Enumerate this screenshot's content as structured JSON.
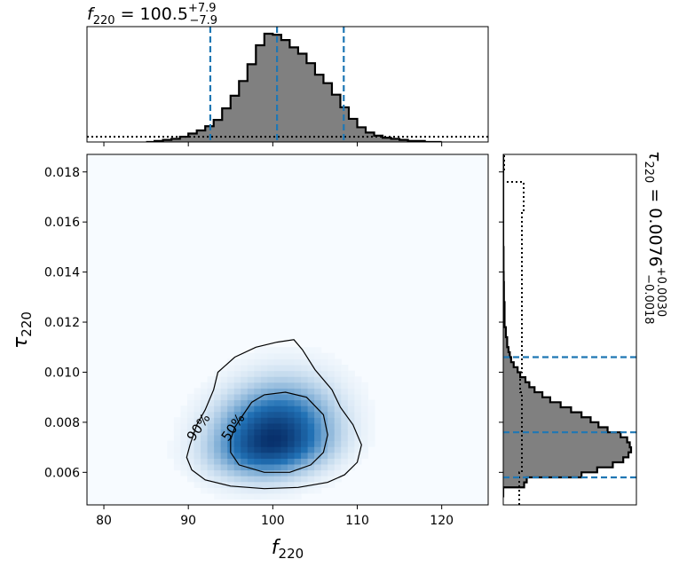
{
  "colors": {
    "hist_fill": "#808080",
    "hist_edge": "#000000",
    "quantile_line": "#1f77b4",
    "density_low": "#f7fbff",
    "density_high": "#08306b"
  },
  "chart_data": [
    {
      "type": "heatmap",
      "xlabel_base": "f",
      "xlabel_sub": "220",
      "ylabel_base": "τ",
      "ylabel_sub": "220",
      "xlim": [
        78,
        125.5
      ],
      "ylim": [
        0.0047,
        0.0187
      ],
      "xticks": [
        80,
        90,
        100,
        110,
        120
      ],
      "xtick_labels": [
        "80",
        "90",
        "100",
        "110",
        "120"
      ],
      "yticks": [
        0.006,
        0.008,
        0.01,
        0.012,
        0.014,
        0.016,
        0.018
      ],
      "ytick_labels": [
        "0.006",
        "0.008",
        "0.010",
        "0.012",
        "0.014",
        "0.016",
        "0.018"
      ],
      "density_peak": {
        "x": 100.0,
        "y": 0.0073
      },
      "contours": [
        {
          "label": "90%",
          "points": [
            [
              90.4,
              0.0061
            ],
            [
              92,
              0.0057
            ],
            [
              95,
              0.00545
            ],
            [
              99,
              0.00535
            ],
            [
              103,
              0.0054
            ],
            [
              106.5,
              0.0056
            ],
            [
              108.5,
              0.0059
            ],
            [
              110,
              0.0064
            ],
            [
              110.5,
              0.0071
            ],
            [
              109.5,
              0.0079
            ],
            [
              108,
              0.0086
            ],
            [
              107,
              0.0093
            ],
            [
              105,
              0.0101
            ],
            [
              103.5,
              0.0109
            ],
            [
              102.5,
              0.0113
            ],
            [
              100.5,
              0.0112
            ],
            [
              98,
              0.011
            ],
            [
              95.5,
              0.0106
            ],
            [
              93.5,
              0.01
            ],
            [
              93,
              0.0093
            ],
            [
              92,
              0.0085
            ],
            [
              91,
              0.0079
            ],
            [
              90.2,
              0.0071
            ],
            [
              89.8,
              0.0066
            ]
          ],
          "label_pos": {
            "x": 91.2,
            "y": 0.0078
          }
        },
        {
          "label": "50%",
          "points": [
            [
              95,
              0.0068
            ],
            [
              96,
              0.0063
            ],
            [
              99,
              0.006
            ],
            [
              102,
              0.006
            ],
            [
              104.5,
              0.0063
            ],
            [
              106,
              0.0068
            ],
            [
              106.5,
              0.0075
            ],
            [
              106,
              0.0083
            ],
            [
              104,
              0.009
            ],
            [
              101.5,
              0.0092
            ],
            [
              99,
              0.0091
            ],
            [
              97.5,
              0.0088
            ],
            [
              96.5,
              0.0083
            ],
            [
              95.5,
              0.0078
            ],
            [
              95,
              0.0073
            ]
          ],
          "label_pos": {
            "x": 95.3,
            "y": 0.0078
          }
        }
      ]
    },
    {
      "type": "bar",
      "title_base": "f",
      "title_sub": "220",
      "title_value": " = 100.5",
      "title_sup": "+7.9",
      "title_lo": "−7.9",
      "xlim": [
        78,
        125.5
      ],
      "bin_edges": [
        85,
        86,
        87,
        88,
        89,
        90,
        91,
        92,
        93,
        94,
        95,
        96,
        97,
        98,
        99,
        100,
        101,
        102,
        103,
        104,
        105,
        106,
        107,
        108,
        109,
        110,
        111,
        112,
        113,
        114,
        115,
        116,
        117,
        118,
        119,
        120
      ],
      "counts": [
        0,
        1,
        2,
        3,
        5,
        8,
        11,
        15,
        21,
        32,
        44,
        58,
        74,
        92,
        103,
        102,
        97,
        90,
        84,
        75,
        64,
        56,
        45,
        33,
        22,
        14,
        9,
        6,
        4,
        3,
        2,
        1,
        1,
        0,
        0
      ],
      "prior_level": 5,
      "quantiles": [
        92.6,
        100.5,
        108.4
      ]
    },
    {
      "type": "bar",
      "orientation": "horizontal",
      "title_base": "τ",
      "title_sub": "220",
      "title_value": " = 0.0076",
      "title_sup": "+0.0030",
      "title_lo": "−0.0018",
      "ylim": [
        0.0047,
        0.0187
      ],
      "bin_edges": [
        0.005,
        0.0052,
        0.0054,
        0.0056,
        0.0058,
        0.006,
        0.0062,
        0.0064,
        0.0066,
        0.0068,
        0.007,
        0.0072,
        0.0074,
        0.0076,
        0.0078,
        0.008,
        0.0082,
        0.0084,
        0.0086,
        0.0088,
        0.009,
        0.0092,
        0.0094,
        0.0096,
        0.0098,
        0.01,
        0.0102,
        0.0104,
        0.0106,
        0.0108,
        0.011,
        0.0112,
        0.0114,
        0.0116,
        0.0118,
        0.012,
        0.0124,
        0.0128,
        0.0132,
        0.0136,
        0.014,
        0.015,
        0.0187
      ],
      "counts": [
        0,
        0,
        16,
        18,
        60,
        72,
        84,
        92,
        96,
        98,
        97,
        95,
        90,
        80,
        73,
        67,
        60,
        52,
        44,
        36,
        30,
        24,
        20,
        17,
        13,
        11,
        8,
        6,
        5,
        4,
        3,
        3,
        2,
        2,
        1,
        1,
        1,
        0.5,
        0.5,
        0.3,
        0.2,
        0
      ],
      "prior": {
        "bin_edges": [
          0.0047,
          0.006,
          0.0092,
          0.01,
          0.0164,
          0.0176,
          0.018,
          0.0187
        ],
        "levels": [
          18,
          21,
          19,
          21,
          23,
          0,
          1
        ]
      },
      "quantiles": [
        0.0058,
        0.0076,
        0.0106
      ]
    }
  ]
}
